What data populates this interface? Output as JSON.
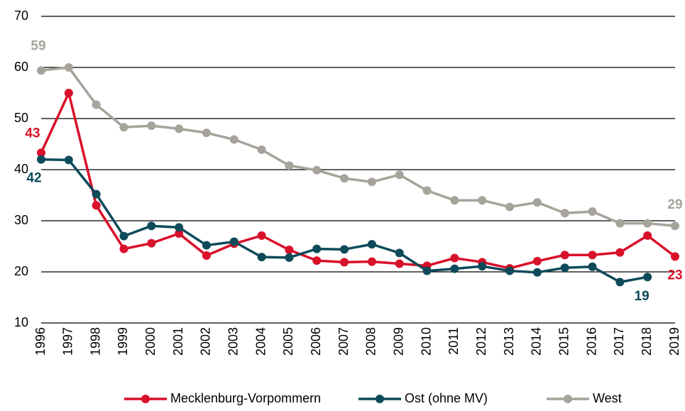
{
  "chart_data": {
    "type": "line",
    "categories": [
      "1996",
      "1997",
      "1998",
      "1999",
      "2000",
      "2001",
      "2002",
      "2003",
      "2004",
      "2005",
      "2006",
      "2007",
      "2008",
      "2009",
      "2010",
      "2011",
      "2012",
      "2013",
      "2014",
      "2015",
      "2016",
      "2017",
      "2018",
      "2019"
    ],
    "series": [
      {
        "name": "Mecklenburg-Vorpommern",
        "color": "#d9102a",
        "values": [
          43.3,
          55,
          33,
          24.5,
          25.6,
          27.5,
          23.2,
          25.5,
          27.1,
          24.3,
          22.2,
          21.9,
          22,
          21.6,
          21.2,
          22.7,
          21.9,
          20.7,
          22.1,
          23.3,
          23.3,
          23.8,
          27.1,
          23
        ],
        "value_labels": [
          "43",
          null,
          null,
          null,
          null,
          null,
          null,
          null,
          null,
          null,
          null,
          null,
          null,
          null,
          null,
          null,
          null,
          null,
          null,
          null,
          null,
          null,
          null,
          "23"
        ]
      },
      {
        "name": "Ost (ohne MV)",
        "color": "#0d4a5a",
        "values": [
          42,
          41.9,
          35.2,
          27,
          29,
          28.7,
          25.2,
          25.9,
          22.9,
          22.8,
          24.5,
          24.4,
          25.4,
          23.7,
          20.2,
          20.6,
          21.1,
          20.2,
          19.9,
          20.8,
          21,
          18,
          19,
          null
        ],
        "value_labels": [
          "42",
          null,
          null,
          null,
          null,
          null,
          null,
          null,
          null,
          null,
          null,
          null,
          null,
          null,
          null,
          null,
          null,
          null,
          null,
          null,
          null,
          null,
          "19",
          null
        ]
      },
      {
        "name": "West",
        "color": "#a6a39b",
        "values": [
          59.4,
          60,
          52.7,
          48.3,
          48.6,
          48,
          47.2,
          45.9,
          43.9,
          40.8,
          39.9,
          38.3,
          37.6,
          39,
          35.9,
          34,
          34,
          32.7,
          33.6,
          31.5,
          31.8,
          29.5,
          29.5,
          29
        ],
        "value_labels": [
          "59",
          null,
          null,
          null,
          null,
          null,
          null,
          null,
          null,
          null,
          null,
          null,
          null,
          null,
          null,
          null,
          null,
          null,
          null,
          null,
          null,
          null,
          null,
          "29"
        ]
      }
    ],
    "ylim": [
      10,
      70
    ],
    "yticks": [
      10,
      20,
      30,
      40,
      50,
      60,
      70
    ],
    "grid": true,
    "legend": "bottom"
  }
}
